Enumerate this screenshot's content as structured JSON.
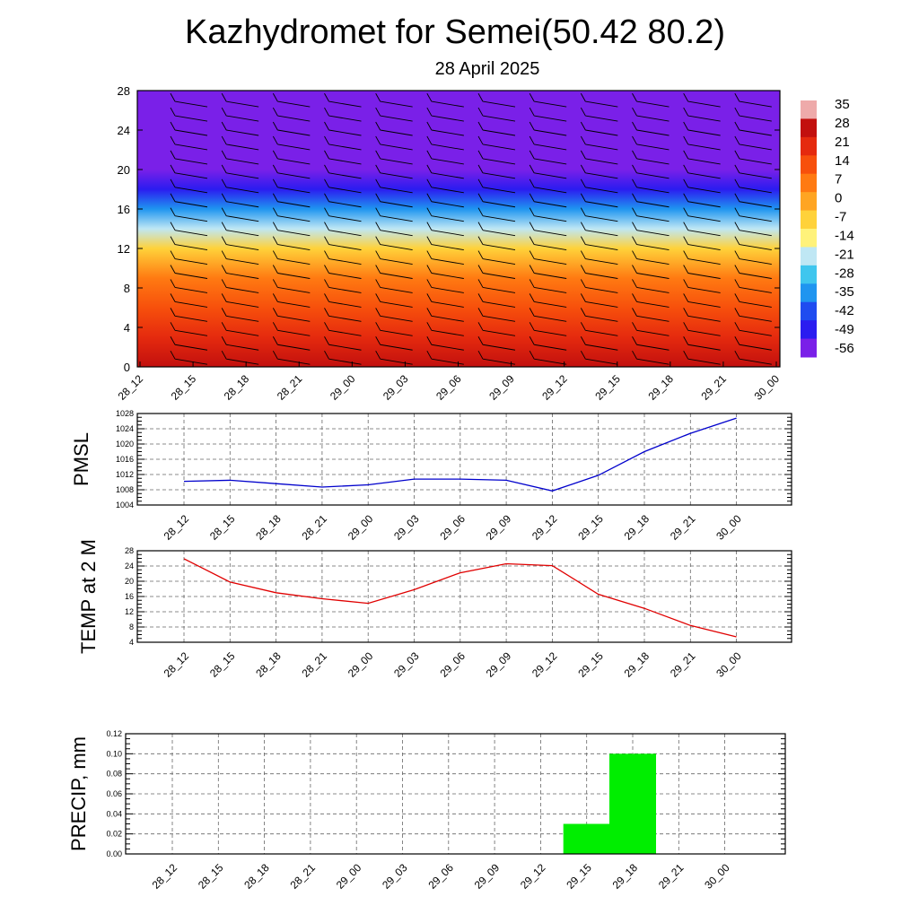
{
  "title": "Kazhydromet for Semei(50.42 80.2)",
  "subtitle": "28 April 2025",
  "chart_data": [
    {
      "type": "heatmap",
      "xlabel": "",
      "ylabel": "",
      "x_tick_labels": [
        "28_12",
        "28_15",
        "28_18",
        "28_21",
        "29_00",
        "29_03",
        "29_06",
        "29_09",
        "29_12",
        "29_15",
        "29_18",
        "29_21",
        "30_00"
      ],
      "y_ticks": [
        0,
        4,
        8,
        12,
        16,
        20,
        24,
        28
      ],
      "ylim": [
        0,
        28
      ],
      "colorbar_labels": [
        "35",
        "28",
        "21",
        "14",
        "7",
        "0",
        "-7",
        "-14",
        "-21",
        "-28",
        "-35",
        "-42",
        "-49",
        "-56"
      ],
      "color_scale": [
        "#7a20e8",
        "#2b1cf0",
        "#1f4cf0",
        "#1f95f0",
        "#3fc6ee",
        "#bfe7f4",
        "#fff27a",
        "#ffd23a",
        "#ffa522",
        "#ff7a12",
        "#f7500c",
        "#e52a0e",
        "#c2100e",
        "#eeaaaa"
      ],
      "temperature_profile": [
        {
          "height": 0,
          "value": 26
        },
        {
          "height": 3,
          "value": 22
        },
        {
          "height": 6,
          "value": 14
        },
        {
          "height": 9,
          "value": 6
        },
        {
          "height": 12,
          "value": -6
        },
        {
          "height": 14,
          "value": -22
        },
        {
          "height": 16,
          "value": -35
        },
        {
          "height": 18,
          "value": -50
        },
        {
          "height": 20,
          "value": -56
        },
        {
          "height": 24,
          "value": -56
        },
        {
          "height": 28,
          "value": -54
        }
      ]
    },
    {
      "type": "line",
      "ylabel": "PMSL",
      "categories": [
        "28_12",
        "28_15",
        "28_18",
        "28_21",
        "29_00",
        "29_03",
        "29_06",
        "29_09",
        "29_12",
        "29_15",
        "29_18",
        "29_21",
        "30_00"
      ],
      "series": [
        {
          "name": "",
          "color": "#0000cc",
          "values": [
            1010.2,
            1010.5,
            1009.6,
            1008.7,
            1009.3,
            1010.8,
            1010.8,
            1010.5,
            1007.7,
            1011.8,
            1018.0,
            1022.8,
            1026.8
          ]
        }
      ],
      "ylim": [
        1004,
        1028
      ],
      "yticks": [
        1004,
        1008,
        1012,
        1016,
        1020,
        1024,
        1028
      ],
      "grid": true
    },
    {
      "type": "line",
      "ylabel": "TEMP at 2 M",
      "categories": [
        "28_12",
        "28_15",
        "28_18",
        "28_21",
        "29_00",
        "29_03",
        "29_06",
        "29_09",
        "29_12",
        "29_15",
        "29_18",
        "29_21",
        "30_00"
      ],
      "series": [
        {
          "name": "",
          "color": "#e00000",
          "values": [
            25.9,
            19.8,
            17.0,
            15.4,
            14.2,
            17.8,
            22.2,
            24.6,
            24.1,
            16.6,
            12.9,
            8.4,
            5.4
          ]
        }
      ],
      "ylim": [
        4,
        28
      ],
      "yticks": [
        4,
        8,
        12,
        16,
        20,
        24,
        28
      ],
      "grid": true
    },
    {
      "type": "bar",
      "ylabel": "PRECIP, mm",
      "categories": [
        "28_12",
        "28_15",
        "28_18",
        "28_21",
        "29_00",
        "29_03",
        "29_06",
        "29_09",
        "29_12",
        "29_15",
        "29_18",
        "29_21",
        "30_00"
      ],
      "values": [
        0,
        0,
        0,
        0,
        0,
        0,
        0,
        0,
        0,
        0.03,
        0.1,
        0,
        0
      ],
      "color": "#00ee00",
      "ylim": [
        0,
        0.12
      ],
      "yticks": [
        "0.00",
        "0.02",
        "0.04",
        "0.06",
        "0.08",
        "0.10",
        "0.12"
      ],
      "grid": true
    }
  ]
}
